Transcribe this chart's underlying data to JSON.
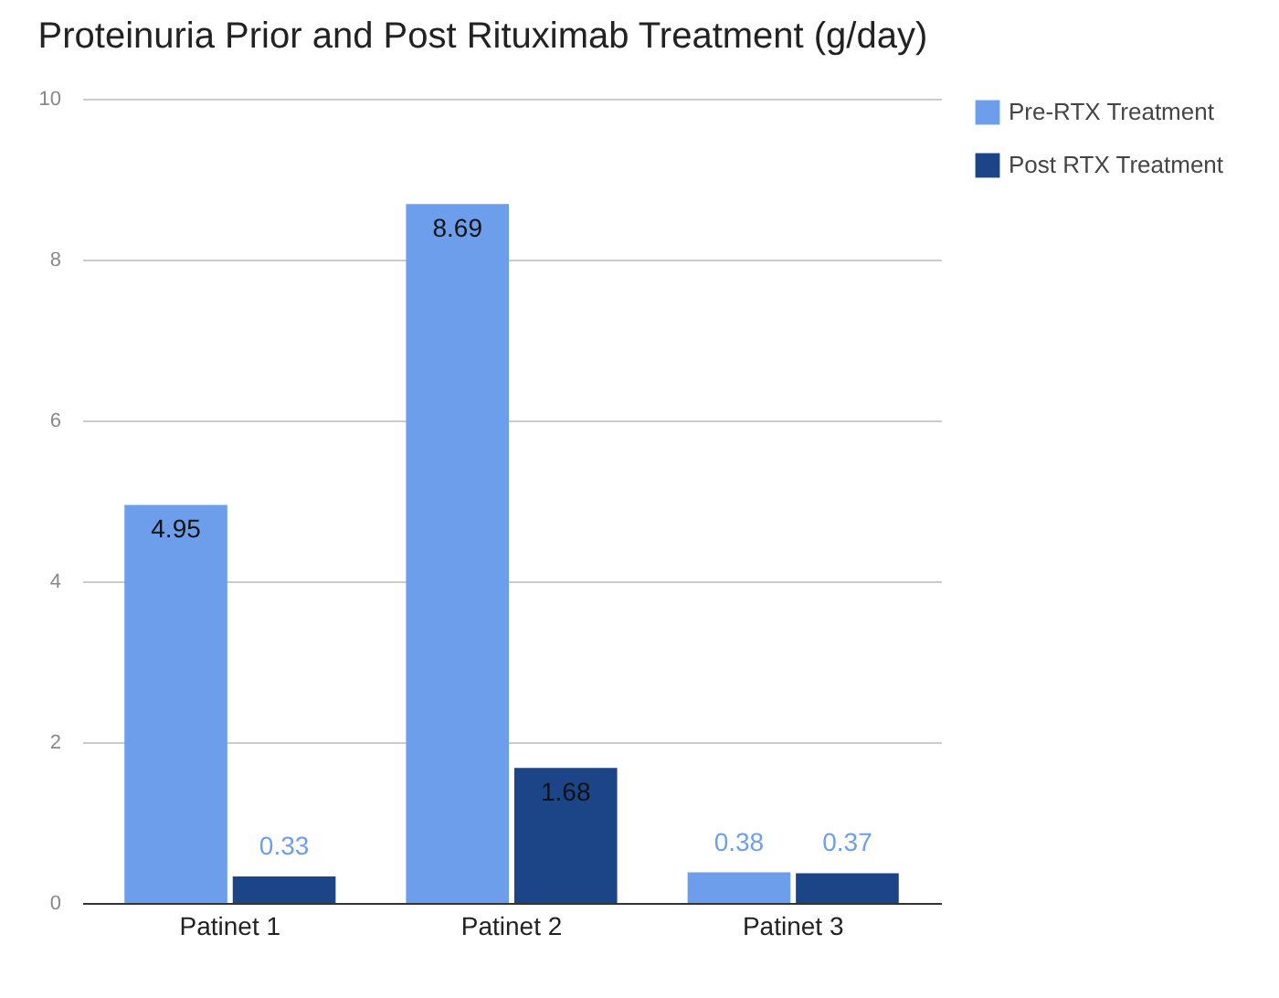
{
  "chart_data": {
    "type": "bar",
    "title": "Proteinuria Prior and Post Rituximab Treatment (g/day)",
    "categories": [
      "Patinet 1",
      "Patinet 2",
      "Patinet 3"
    ],
    "series": [
      {
        "name": "Pre-RTX Treatment",
        "color": "#6d9eeb",
        "values": [
          4.95,
          8.69,
          0.38
        ]
      },
      {
        "name": "Post RTX Treatment",
        "color": "#1c4587",
        "values": [
          0.33,
          1.68,
          0.37
        ]
      }
    ],
    "ylim": [
      0,
      10
    ],
    "yticks": [
      0,
      2,
      4,
      6,
      8,
      10
    ],
    "grid": "y",
    "legend": "top right",
    "data_labels": true
  }
}
